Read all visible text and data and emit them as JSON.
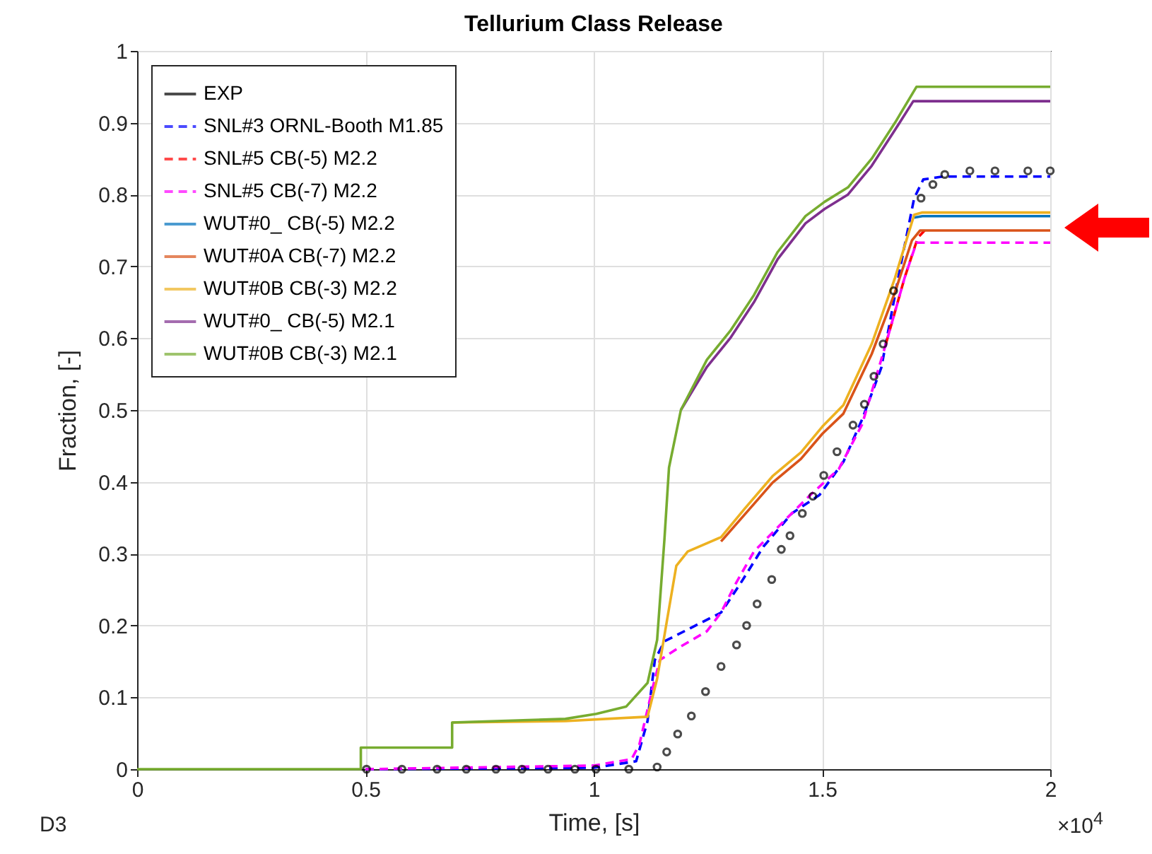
{
  "chart_data": {
    "type": "line",
    "title": "Tellurium Class Release",
    "xlabel": "Time, [s]",
    "ylabel": "Fraction, [-]",
    "xlim": [
      0,
      2
    ],
    "xticks": [
      0,
      0.5,
      1,
      1.5,
      2
    ],
    "ylim": [
      0,
      1
    ],
    "yticks": [
      0,
      0.1,
      0.2,
      0.3,
      0.4,
      0.5,
      0.6,
      0.7,
      0.8,
      0.9,
      1
    ],
    "grid": true,
    "legend": "top left",
    "annotations": [
      "×10$^{4}$",
      "D3"
    ],
    "series": [
      {
        "name": "EXP",
        "type": "scatter",
        "marker": "circle",
        "color": "#000000",
        "x": [
          0.5025,
          0.58,
          0.657,
          0.721,
          0.786,
          0.843,
          0.9,
          0.959,
          1.005,
          1.077,
          1.139,
          1.16,
          1.184,
          1.214,
          1.245,
          1.279,
          1.313,
          1.335,
          1.358,
          1.39,
          1.411,
          1.43,
          1.457,
          1.48,
          1.504,
          1.533,
          1.568,
          1.593,
          1.614,
          1.634,
          1.657,
          1.717,
          1.743,
          1.769,
          1.824,
          1.879,
          1.951,
          2
        ],
        "values": [
          0,
          0,
          0,
          0,
          0,
          0,
          0,
          0,
          0,
          0,
          0.003,
          0.024,
          0.049,
          0.074,
          0.108,
          0.143,
          0.173,
          0.2,
          0.23,
          0.264,
          0.306,
          0.325,
          0.356,
          0.38,
          0.409,
          0.442,
          0.479,
          0.508,
          0.547,
          0.592,
          0.666,
          0.795,
          0.814,
          0.828,
          0.833,
          0.833,
          0.833,
          0.833
        ]
      },
      {
        "name": "SNL#3 ORNL-Booth M1.85",
        "type": "line",
        "line_style": "dashed",
        "color": "#0000ff",
        "x": [
          0.5,
          1,
          1.093,
          1.118,
          1.134,
          1.155,
          1.217,
          1.279,
          1.32,
          1.372,
          1.434,
          1.495,
          1.547,
          1.588,
          1.63,
          1.671,
          1.702,
          1.722,
          1.764,
          2
        ],
        "values": [
          0,
          0.002,
          0.011,
          0.067,
          0.152,
          0.178,
          0.198,
          0.218,
          0.257,
          0.31,
          0.356,
          0.382,
          0.428,
          0.487,
          0.559,
          0.697,
          0.795,
          0.821,
          0.825,
          0.825
        ]
      },
      {
        "name": "SNL#5 CB(-5) M2.2",
        "type": "line",
        "line_style": "dashed",
        "color": "#ff0000",
        "x": [
          1.64,
          1.681,
          1.71,
          1.725
        ],
        "values": [
          0.592,
          0.684,
          0.74,
          0.75
        ]
      },
      {
        "name": "SNL#5 CB(-7) M2.2",
        "type": "line",
        "line_style": "dashed",
        "color": "#ff00ff",
        "x": [
          0.5,
          1,
          1.083,
          1.1,
          1.129,
          1.145,
          1.186,
          1.248,
          1.279,
          1.31,
          1.351,
          1.413,
          1.475,
          1.537,
          1.588,
          1.64,
          1.681,
          1.707,
          2
        ],
        "values": [
          0,
          0.005,
          0.014,
          0.034,
          0.113,
          0.152,
          0.169,
          0.192,
          0.218,
          0.257,
          0.303,
          0.343,
          0.382,
          0.418,
          0.48,
          0.592,
          0.684,
          0.733,
          0.733
        ]
      },
      {
        "name": "WUT#0_ CB(-5) M2.2",
        "type": "line",
        "line_style": "solid",
        "color": "#0072bd",
        "x": [
          1.702,
          1.72,
          2
        ],
        "values": [
          0.768,
          0.77,
          0.77
        ]
      },
      {
        "name": "WUT#0A CB(-7) M2.2",
        "type": "line",
        "line_style": "solid",
        "color": "#d95319",
        "x": [
          1.279,
          1.33,
          1.392,
          1.454,
          1.501,
          1.547,
          1.609,
          1.66,
          1.697,
          1.715,
          2
        ],
        "values": [
          0.317,
          0.354,
          0.399,
          0.432,
          0.467,
          0.495,
          0.578,
          0.664,
          0.736,
          0.75,
          0.75
        ]
      },
      {
        "name": "WUT#0B CB(-3) M2.2",
        "type": "line",
        "line_style": "solid",
        "color": "#edb120",
        "x": [
          0.69,
          0.938,
          1.118,
          1.139,
          1.16,
          1.181,
          1.206,
          1.279,
          1.33,
          1.392,
          1.454,
          1.501,
          1.547,
          1.609,
          1.66,
          1.702,
          1.72,
          2
        ],
        "values": [
          0.065,
          0.067,
          0.073,
          0.126,
          0.205,
          0.283,
          0.303,
          0.323,
          0.362,
          0.408,
          0.441,
          0.477,
          0.507,
          0.592,
          0.684,
          0.772,
          0.775,
          0.775
        ]
      },
      {
        "name": "WUT#0_ CB(-5) M2.1",
        "type": "line",
        "line_style": "solid",
        "color": "#7e2f8e",
        "x": [
          1.191,
          1.248,
          1.299,
          1.351,
          1.403,
          1.464,
          1.506,
          1.557,
          1.609,
          1.66,
          1.7,
          2
        ],
        "values": [
          0.5,
          0.56,
          0.6,
          0.65,
          0.71,
          0.76,
          0.78,
          0.8,
          0.84,
          0.89,
          0.93,
          0.93
        ]
      },
      {
        "name": "WUT#0B CB(-3) M2.1",
        "type": "line",
        "line_style": "solid",
        "color": "#77ac30",
        "x": [
          0,
          0.49,
          0.49,
          0.69,
          0.69,
          0.938,
          1.006,
          1.071,
          1.118,
          1.139,
          1.155,
          1.165,
          1.191,
          1.248,
          1.299,
          1.351,
          1.403,
          1.464,
          1.506,
          1.557,
          1.609,
          1.66,
          1.707,
          2
        ],
        "values": [
          0,
          0,
          0.03,
          0.03,
          0.065,
          0.07,
          0.077,
          0.087,
          0.12,
          0.18,
          0.32,
          0.42,
          0.5,
          0.57,
          0.61,
          0.66,
          0.72,
          0.77,
          0.79,
          0.81,
          0.85,
          0.9,
          0.95,
          0.95
        ]
      }
    ]
  }
}
